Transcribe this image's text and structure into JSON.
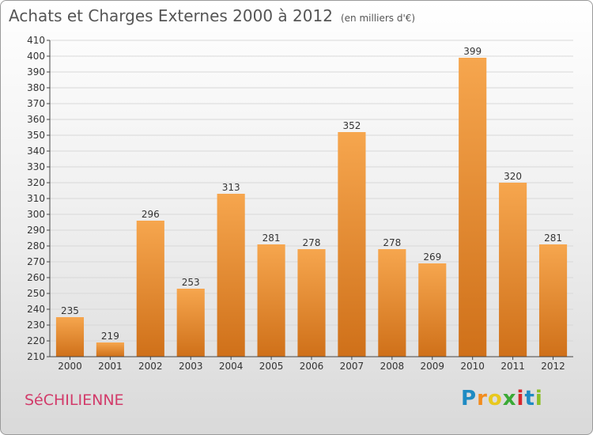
{
  "title": "Achats et Charges Externes 2000 à 2012",
  "unit": "(en milliers d'€)",
  "commune": "SéCHILIENNE",
  "logo": {
    "letters": [
      "P",
      "r",
      "o",
      "x",
      "i",
      "t",
      "i"
    ],
    "colors": [
      "#1e8bc3",
      "#f28c1e",
      "#e8c81e",
      "#3aa935",
      "#d6262d",
      "#1e8bc3",
      "#8cbf26"
    ]
  },
  "colors": {
    "bar_top": "#f6a64e",
    "bar_bottom": "#cf7019",
    "title": "#555555",
    "commune": "#d23b6a"
  },
  "chart_data": {
    "type": "bar",
    "categories": [
      "2000",
      "2001",
      "2002",
      "2003",
      "2004",
      "2005",
      "2006",
      "2007",
      "2008",
      "2009",
      "2010",
      "2011",
      "2012"
    ],
    "values": [
      235,
      219,
      296,
      253,
      313,
      281,
      278,
      352,
      278,
      269,
      399,
      320,
      281
    ],
    "ylim": [
      210,
      410
    ],
    "yticks": [
      210,
      220,
      230,
      240,
      250,
      260,
      270,
      280,
      290,
      300,
      310,
      320,
      330,
      340,
      350,
      360,
      370,
      380,
      390,
      400,
      410
    ],
    "grid": true,
    "legend": "none"
  }
}
